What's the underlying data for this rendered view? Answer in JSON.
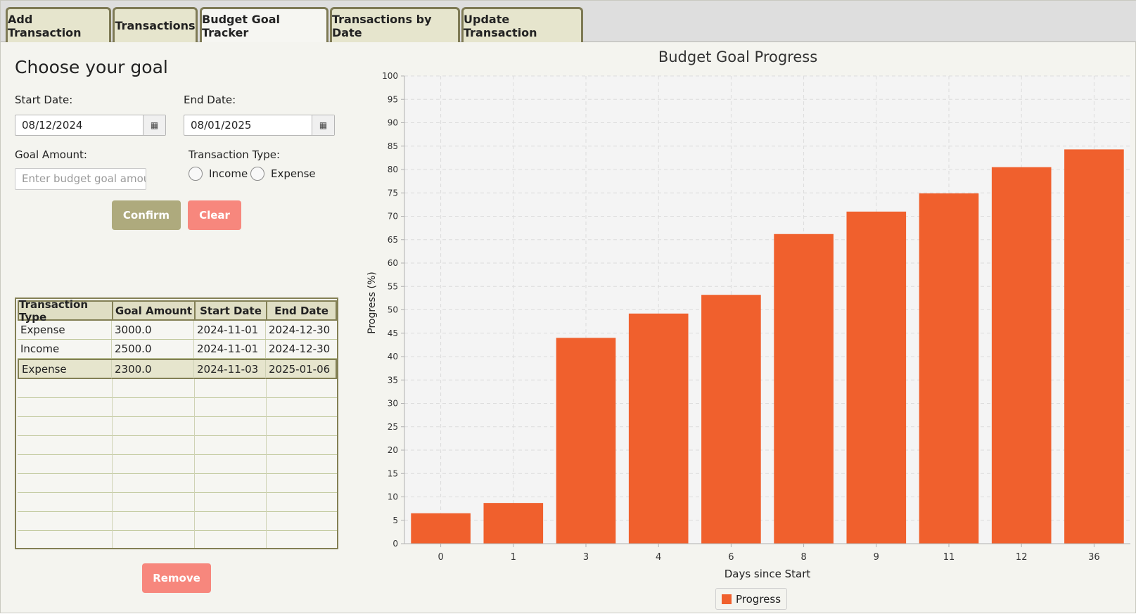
{
  "tabs": [
    {
      "label": "Add Transaction"
    },
    {
      "label": "Transactions"
    },
    {
      "label": "Budget Goal Tracker"
    },
    {
      "label": "Transactions by Date"
    },
    {
      "label": "Update Transaction"
    }
  ],
  "form": {
    "title": "Choose your goal",
    "start_label": "Start Date:",
    "start_value": "08/12/2024",
    "end_label": "End Date:",
    "end_value": "08/01/2025",
    "goal_label": "Goal Amount:",
    "goal_placeholder": "Enter budget goal amoun",
    "type_label": "Transaction Type:",
    "radio_income": "Income",
    "radio_expense": "Expense",
    "confirm": "Confirm",
    "clear": "Clear"
  },
  "table": {
    "headers": [
      "Transaction Type",
      "Goal Amount",
      "Start Date",
      "End Date"
    ],
    "rows": [
      [
        "Expense",
        "3000.0",
        "2024-11-01",
        "2024-12-30"
      ],
      [
        "Income",
        "2500.0",
        "2024-11-01",
        "2024-12-30"
      ],
      [
        "Expense",
        "2300.0",
        "2024-11-03",
        "2025-01-06"
      ]
    ],
    "remove": "Remove"
  },
  "chart_data": {
    "type": "bar",
    "title": "Budget Goal Progress",
    "xlabel": "Days since Start",
    "ylabel": "Progress (%)",
    "categories": [
      "0",
      "1",
      "3",
      "4",
      "6",
      "8",
      "9",
      "11",
      "12",
      "36"
    ],
    "series": [
      {
        "name": "Progress",
        "values": [
          6.5,
          8.7,
          44,
          49.2,
          53.2,
          66.2,
          71,
          74.9,
          80.5,
          84.3
        ]
      }
    ],
    "ylim": [
      0,
      100
    ],
    "ytick_step": 5,
    "grid": true,
    "legend": "bottom-center",
    "color": "#f0602d"
  }
}
